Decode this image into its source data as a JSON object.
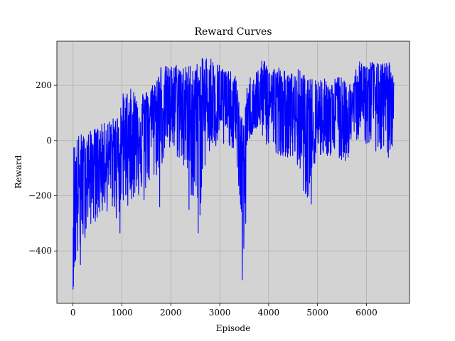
{
  "chart_data": {
    "type": "line",
    "title": "Reward Curves",
    "xlabel": "Episode",
    "ylabel": "Reward",
    "xlim": [
      -330,
      6880
    ],
    "ylim": [
      -590,
      360
    ],
    "xticks": [
      0,
      1000,
      2000,
      3000,
      4000,
      5000,
      6000
    ],
    "xtick_labels": [
      "0",
      "1000",
      "2000",
      "3000",
      "4000",
      "5000",
      "6000"
    ],
    "yticks": [
      -400,
      -200,
      0,
      200
    ],
    "ytick_labels": [
      "−400",
      "−200",
      "0",
      "200"
    ],
    "grid": true,
    "background_color": "#d3d3d3",
    "series": [
      {
        "color": "#0000ff",
        "envelope": {
          "x": [
            0,
            50,
            100,
            150,
            200,
            300,
            400,
            500,
            600,
            700,
            800,
            900,
            1000,
            1100,
            1200,
            1300,
            1400,
            1500,
            1600,
            1700,
            1800,
            1900,
            2000,
            2100,
            2200,
            2300,
            2400,
            2500,
            2600,
            2700,
            2800,
            2900,
            3000,
            3100,
            3200,
            3300,
            3400,
            3450,
            3500,
            3550,
            3600,
            3700,
            3800,
            3900,
            4000,
            4100,
            4200,
            4300,
            4400,
            4500,
            4600,
            4700,
            4800,
            4900,
            5000,
            5100,
            5200,
            5300,
            5400,
            5500,
            5600,
            5700,
            5800,
            5900,
            6000,
            6100,
            6200,
            6300,
            6400,
            6500,
            6560
          ],
          "mean": [
            -250,
            -200,
            -180,
            -160,
            -140,
            -110,
            -90,
            -80,
            -70,
            -60,
            -50,
            -40,
            -20,
            0,
            20,
            40,
            60,
            80,
            90,
            110,
            120,
            130,
            140,
            140,
            130,
            120,
            110,
            100,
            110,
            130,
            140,
            150,
            130,
            100,
            90,
            80,
            20,
            -50,
            -80,
            10,
            60,
            90,
            110,
            160,
            160,
            140,
            130,
            120,
            110,
            90,
            90,
            60,
            40,
            30,
            60,
            80,
            90,
            100,
            90,
            80,
            90,
            110,
            130,
            140,
            150,
            160,
            160,
            150,
            150,
            150,
            150
          ],
          "top": [
            -20,
            20,
            20,
            30,
            20,
            30,
            40,
            50,
            60,
            70,
            80,
            90,
            170,
            180,
            190,
            180,
            180,
            180,
            200,
            230,
            280,
            270,
            270,
            280,
            280,
            270,
            280,
            280,
            290,
            310,
            310,
            290,
            280,
            270,
            250,
            250,
            170,
            90,
            50,
            200,
            230,
            250,
            270,
            300,
            280,
            270,
            270,
            260,
            240,
            250,
            260,
            250,
            220,
            230,
            240,
            230,
            220,
            210,
            240,
            230,
            200,
            220,
            280,
            290,
            290,
            290,
            280,
            280,
            285,
            285,
            220
          ],
          "bottom": [
            -540,
            -480,
            -440,
            -420,
            -380,
            -320,
            -300,
            -290,
            -270,
            -260,
            -250,
            -300,
            -250,
            -240,
            -220,
            -210,
            -200,
            -190,
            -170,
            -140,
            -100,
            -60,
            -60,
            -60,
            -80,
            -140,
            -200,
            -250,
            -280,
            -100,
            -60,
            -40,
            -40,
            -30,
            -20,
            -40,
            -200,
            -500,
            -400,
            -60,
            0,
            30,
            40,
            0,
            -40,
            -40,
            -50,
            -60,
            -60,
            -80,
            -100,
            -180,
            -220,
            -120,
            -80,
            -60,
            -60,
            -60,
            -80,
            -80,
            -80,
            -20,
            0,
            20,
            -20,
            -30,
            -40,
            -60,
            -80,
            -60,
            -30
          ]
        },
        "spikes": [
          {
            "x": 0,
            "y": -540
          },
          {
            "x": 150,
            "y": -450
          },
          {
            "x": 960,
            "y": -335
          },
          {
            "x": 1450,
            "y": -215
          },
          {
            "x": 1770,
            "y": -240
          },
          {
            "x": 2370,
            "y": -250
          },
          {
            "x": 2560,
            "y": -335
          },
          {
            "x": 3460,
            "y": -505
          },
          {
            "x": 3530,
            "y": -300
          },
          {
            "x": 4870,
            "y": -230
          },
          {
            "x": 4790,
            "y": -205
          }
        ]
      }
    ]
  }
}
